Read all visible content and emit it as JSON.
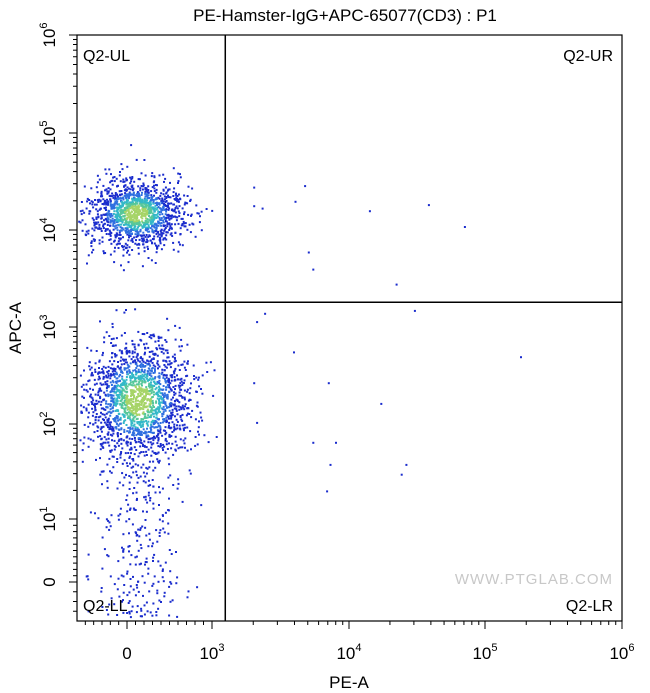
{
  "chart_data": {
    "type": "scatter",
    "title": "PE-Hamster-IgG+APC-65077(CD3) : P1",
    "xlabel": "PE-A",
    "ylabel": "APC-A",
    "x_scale": "biexponential",
    "y_scale": "biexponential",
    "xlim": [
      -600,
      1000000
    ],
    "ylim": [
      -4,
      1000000
    ],
    "x_ticks": [
      {
        "value": 0,
        "base": "0",
        "exp": ""
      },
      {
        "value": 1000,
        "base": "10",
        "exp": "3"
      },
      {
        "value": 10000,
        "base": "10",
        "exp": "4"
      },
      {
        "value": 100000,
        "base": "10",
        "exp": "5"
      },
      {
        "value": 1000000,
        "base": "10",
        "exp": "6"
      }
    ],
    "y_ticks": [
      {
        "value": 0,
        "base": "0",
        "exp": ""
      },
      {
        "value": 10,
        "base": "10",
        "exp": "1"
      },
      {
        "value": 100,
        "base": "10",
        "exp": "2"
      },
      {
        "value": 1000,
        "base": "10",
        "exp": "3"
      },
      {
        "value": 10000,
        "base": "10",
        "exp": "4"
      },
      {
        "value": 100000,
        "base": "10",
        "exp": "5"
      },
      {
        "value": 1000000,
        "base": "10",
        "exp": "6"
      }
    ],
    "gate": {
      "x": 1250,
      "y": 1800
    },
    "quadrants": [
      {
        "label": "Q2-UL",
        "position": "top-left"
      },
      {
        "label": "Q2-UR",
        "position": "top-right"
      },
      {
        "label": "Q2-LL",
        "position": "bottom-left"
      },
      {
        "label": "Q2-LR",
        "position": "bottom-right"
      }
    ],
    "populations": [
      {
        "quadrant": "Q2-UL",
        "center_x": 100,
        "center_y": 15000,
        "description": "dense cluster"
      },
      {
        "quadrant": "Q2-LL",
        "center_x": 120,
        "center_y": 180,
        "description": "dense cluster"
      }
    ],
    "outlier_points": [
      [
        2000,
        28000
      ],
      [
        2000,
        18000
      ],
      [
        2300,
        17000
      ],
      [
        4000,
        20000
      ],
      [
        4700,
        29000
      ],
      [
        14000,
        16000
      ],
      [
        38000,
        18500
      ],
      [
        70000,
        11000
      ],
      [
        5000,
        6000
      ],
      [
        5400,
        4000
      ],
      [
        22000,
        2800
      ],
      [
        2100,
        1150
      ],
      [
        2400,
        1400
      ],
      [
        30000,
        1500
      ],
      [
        180000,
        500
      ],
      [
        3900,
        560
      ],
      [
        7000,
        270
      ],
      [
        2000,
        270
      ],
      [
        17000,
        165
      ],
      [
        2100,
        105
      ],
      [
        5400,
        65
      ],
      [
        7900,
        65
      ],
      [
        26000,
        38
      ],
      [
        24000,
        30
      ],
      [
        7200,
        38
      ],
      [
        6800,
        20
      ]
    ],
    "grid": false,
    "density_colormap": [
      "#1a2ccd",
      "#2f6fe0",
      "#33b8c8",
      "#56c79a",
      "#a6d468"
    ]
  },
  "watermark": "WWW.PTGLAB.COM"
}
